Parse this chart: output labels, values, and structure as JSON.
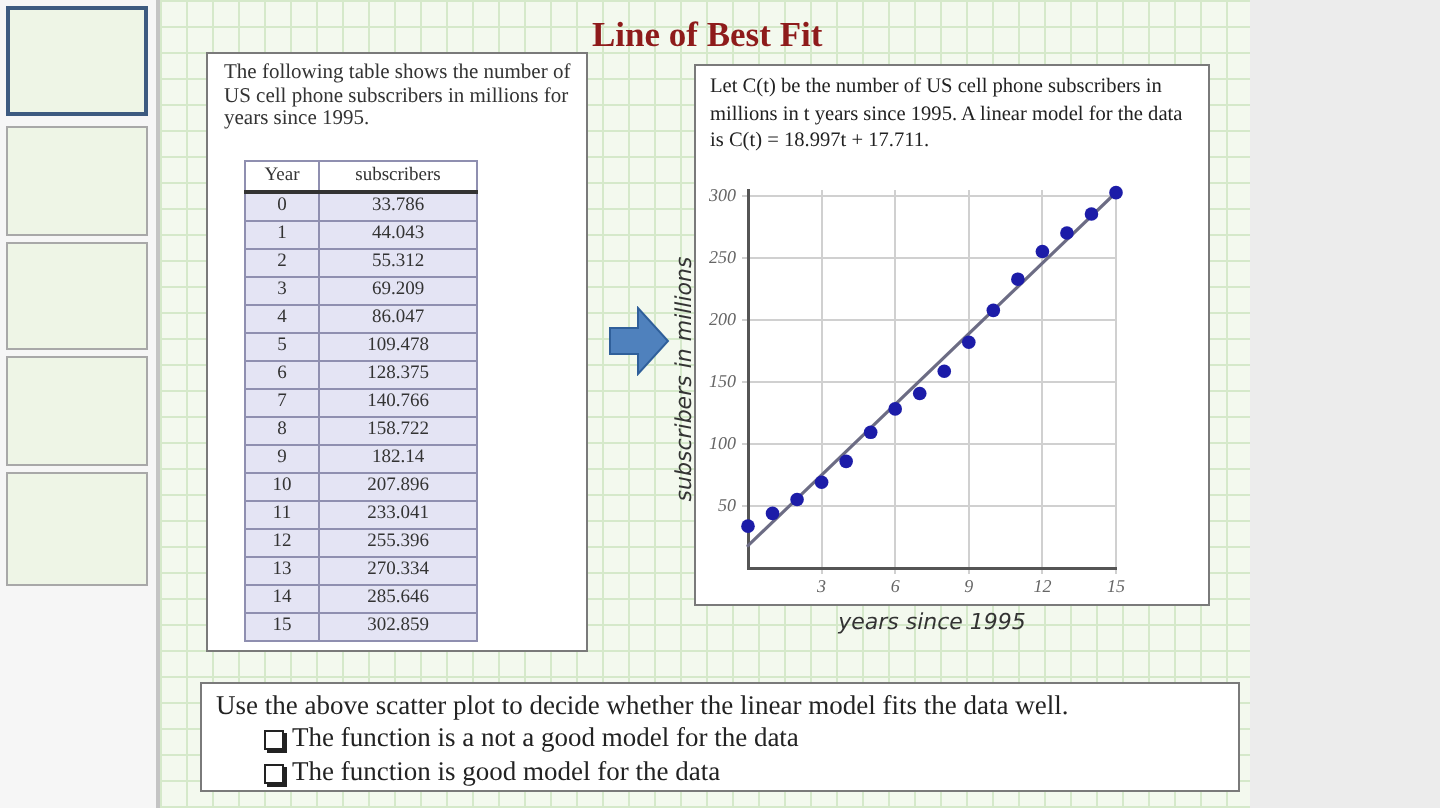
{
  "chart_data": [
    {
      "type": "heatmap",
      "ylabel": "Year",
      "categories": [
        "subscribers"
      ],
      "y_categories": [
        "0",
        "1",
        "2",
        "3",
        "4",
        "5",
        "6",
        "7",
        "8",
        "9",
        "10",
        "11",
        "12",
        "13",
        "14",
        "15"
      ],
      "cells": [
        [
          33.786
        ],
        [
          44.043
        ],
        [
          55.312
        ],
        [
          69.209
        ],
        [
          86.047
        ],
        [
          109.478
        ],
        [
          128.375
        ],
        [
          140.766
        ],
        [
          158.722
        ],
        [
          182.14
        ],
        [
          207.896
        ],
        [
          233.041
        ],
        [
          255.396
        ],
        [
          270.334
        ],
        [
          285.646
        ],
        [
          302.859
        ]
      ],
      "color": "#e4e4f4",
      "data_labels": true,
      "annotations": [
        "The following table shows the number of US cell phone subscribers in millions for years since 1995."
      ]
    },
    {
      "type": "scatter",
      "title": "Line of Best Fit",
      "xlabel": "years since 1995",
      "ylabel": "subscribers in millions",
      "x": [
        0,
        1,
        2,
        3,
        4,
        5,
        6,
        7,
        8,
        9,
        10,
        11,
        12,
        13,
        14,
        15
      ],
      "series": [
        {
          "type": "scatter",
          "color": "#1c1ca8",
          "values": [
            33.786,
            44.043,
            55.312,
            69.209,
            86.047,
            109.478,
            128.375,
            140.766,
            158.722,
            182.14,
            207.896,
            233.041,
            255.396,
            270.334,
            285.646,
            302.859
          ]
        },
        {
          "type": "line",
          "color": "#6c6c84",
          "marker": "none",
          "x": [
            0,
            15
          ],
          "values": [
            18,
            303
          ]
        }
      ],
      "marker": "circle",
      "xlim": [
        0,
        15
      ],
      "ylim": [
        0,
        305
      ],
      "xticks": [
        3,
        6,
        9,
        12,
        15
      ],
      "yticks": [
        50,
        100,
        150,
        200,
        250,
        300
      ],
      "grid": true,
      "annotations": [
        "Let C(t) be the number of US cell phone subscribers in millions in t years since 1995. A linear model for the data is C(t) = 18.997t + 17.711.",
        "Use the above scatter plot to decide whether the linear model fits the data well.",
        "The function is a not a good model for the data",
        "The function is good model for the data"
      ]
    }
  ]
}
